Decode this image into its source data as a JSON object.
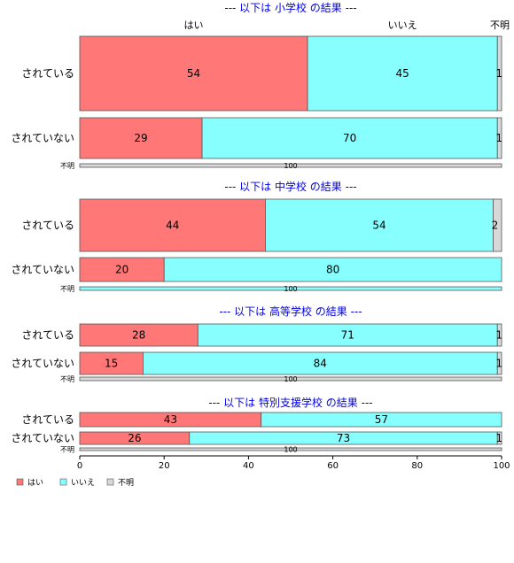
{
  "chart_data": {
    "type": "bar",
    "orientation": "horizontal",
    "stacked": "percent",
    "xlim": [
      0,
      100
    ],
    "x_ticks": [
      "0",
      "20",
      "40",
      "60",
      "80",
      "100"
    ],
    "legend_position": "bottom-left",
    "series_names": [
      "はい",
      "いいえ",
      "不明"
    ],
    "series_colors": [
      "#ff7777",
      "#88ffff",
      "#d8d8d8"
    ],
    "panels": [
      {
        "title": "--- 以下は 小学校 の結果 ---",
        "rows": [
          {
            "category": "されている",
            "values": [
              54,
              45,
              1
            ],
            "labels": [
              "54",
              "45",
              "1"
            ]
          },
          {
            "category": "されていない",
            "values": [
              29,
              70,
              1
            ],
            "labels": [
              "29",
              "70",
              "1"
            ]
          },
          {
            "category": "不明",
            "values": [
              0,
              0,
              100
            ],
            "labels": [
              "",
              "",
              "100"
            ]
          }
        ]
      },
      {
        "title": "--- 以下は 中学校 の結果 ---",
        "rows": [
          {
            "category": "されている",
            "values": [
              44,
              54,
              2
            ],
            "labels": [
              "44",
              "54",
              "2"
            ]
          },
          {
            "category": "されていない",
            "values": [
              20,
              80,
              0
            ],
            "labels": [
              "20",
              "80",
              ""
            ]
          },
          {
            "category": "不明",
            "values": [
              0,
              100,
              0
            ],
            "labels": [
              "",
              "100",
              ""
            ]
          }
        ]
      },
      {
        "title": "--- 以下は 高等学校 の結果 ---",
        "rows": [
          {
            "category": "されている",
            "values": [
              28,
              71,
              1
            ],
            "labels": [
              "28",
              "71",
              "1"
            ]
          },
          {
            "category": "されていない",
            "values": [
              15,
              84,
              1
            ],
            "labels": [
              "15",
              "84",
              "1"
            ]
          },
          {
            "category": "不明",
            "values": [
              0,
              0,
              100
            ],
            "labels": [
              "",
              "",
              "100"
            ]
          }
        ]
      },
      {
        "title": "--- 以下は 特別支援学校 の結果 ---",
        "rows": [
          {
            "category": "されている",
            "values": [
              43,
              57,
              0
            ],
            "labels": [
              "43",
              "57",
              ""
            ]
          },
          {
            "category": "されていない",
            "values": [
              26,
              73,
              1
            ],
            "labels": [
              "26",
              "73",
              "1"
            ]
          },
          {
            "category": "不明",
            "values": [
              0,
              0,
              100
            ],
            "labels": [
              "",
              "",
              "100"
            ]
          }
        ]
      }
    ]
  }
}
